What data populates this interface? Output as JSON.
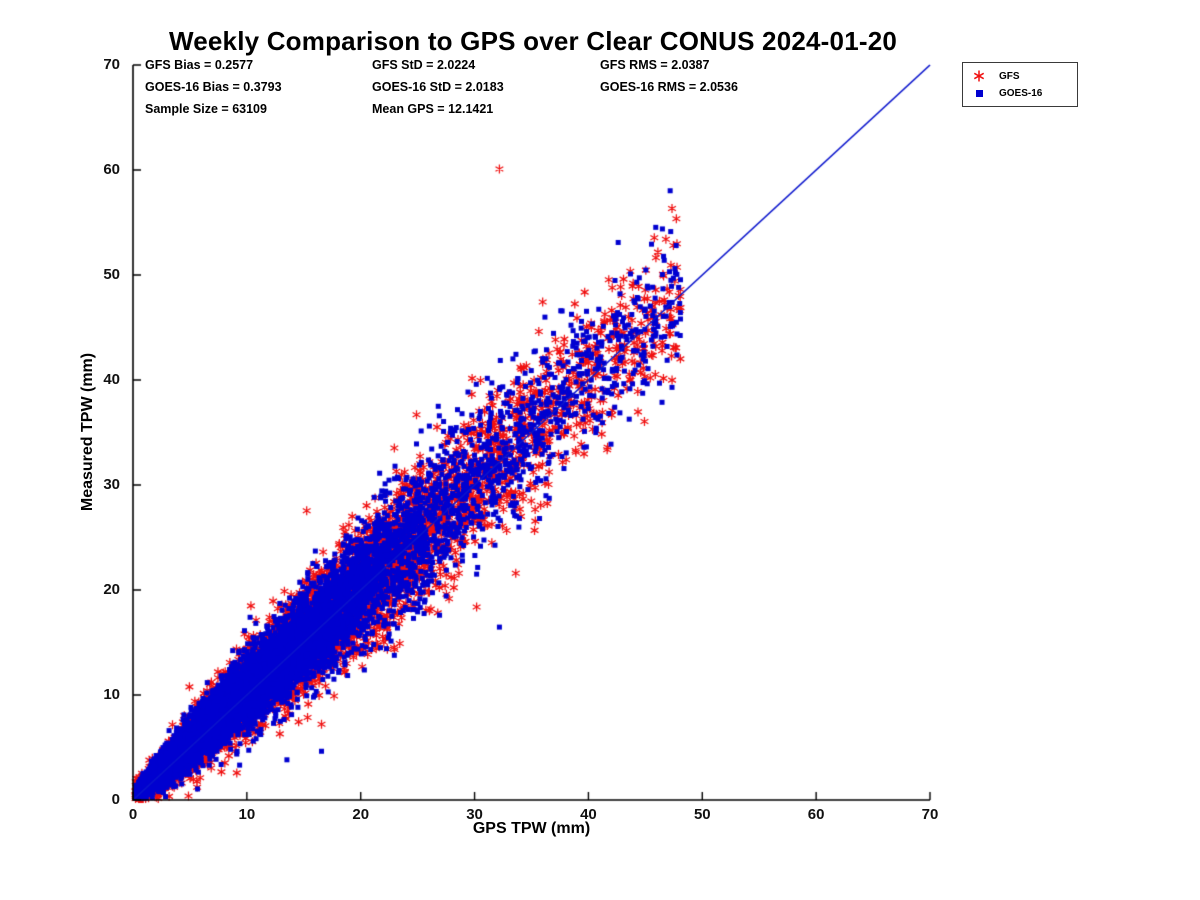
{
  "chart_data": {
    "type": "scatter",
    "title": "Weekly Comparison to GPS over Clear CONUS 2024-01-20",
    "xlabel": "GPS TPW (mm)",
    "ylabel": "Measured TPW (mm)",
    "xlim": [
      0,
      70
    ],
    "ylim": [
      0,
      70
    ],
    "xticks": [
      0,
      10,
      20,
      30,
      40,
      50,
      60,
      70
    ],
    "yticks": [
      0,
      10,
      20,
      30,
      40,
      50,
      60,
      70
    ],
    "grid": false,
    "legend_position": "outside-top-right",
    "annotations": [
      "GFS Bias = 0.2577",
      "GFS StD = 2.0224",
      "GFS RMS = 2.0387",
      "GOES-16 Bias = 0.3793",
      "GOES-16 StD = 2.0183",
      "GOES-16 RMS = 2.0536",
      "Sample Size = 63109",
      "Mean GPS = 12.1421"
    ],
    "stats": {
      "gfs": {
        "bias": 0.2577,
        "std": 2.0224,
        "rms": 2.0387
      },
      "goes16": {
        "bias": 0.3793,
        "std": 2.0183,
        "rms": 2.0536
      },
      "sample_size": 63109,
      "mean_gps": 12.1421
    },
    "series": [
      {
        "name": "GFS",
        "marker": "asterisk",
        "color": "#f01010",
        "bias": 0.2577,
        "std": 2.0224
      },
      {
        "name": "GOES-16",
        "marker": "square",
        "color": "#0000d0",
        "bias": 0.3793,
        "std": 2.0183
      }
    ],
    "reference_line": {
      "from": [
        0,
        0
      ],
      "to": [
        70,
        70
      ],
      "color": "#0a14cc"
    },
    "scatter_profile": {
      "x_mean": 12.1421,
      "x_max": 48.2,
      "x_distribution": "gamma(shape=2, scale=6.07)",
      "render_points": 9000,
      "seed": 42
    }
  }
}
